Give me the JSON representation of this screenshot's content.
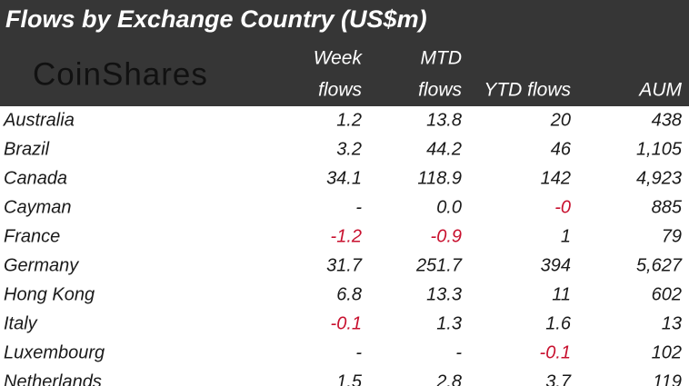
{
  "header": {
    "title": "Flows by Exchange Country (US$m)",
    "logo": "CoinShares"
  },
  "table": {
    "columns": [
      [
        "Week",
        "flows"
      ],
      [
        "MTD",
        "flows"
      ],
      [
        "YTD flows"
      ],
      [
        "AUM"
      ]
    ],
    "rows": [
      [
        "Australia",
        "1.2",
        "13.8",
        "20",
        "438"
      ],
      [
        "Brazil",
        "3.2",
        "44.2",
        "46",
        "1,105"
      ],
      [
        "Canada",
        "34.1",
        "118.9",
        "142",
        "4,923"
      ],
      [
        "Cayman",
        "-",
        "0.0",
        "-0",
        "885"
      ],
      [
        "France",
        "-1.2",
        "-0.9",
        "1",
        "79"
      ],
      [
        "Germany",
        "31.7",
        "251.7",
        "394",
        "5,627"
      ],
      [
        "Hong Kong",
        "6.8",
        "13.3",
        "11",
        "602"
      ],
      [
        "Italy",
        "-0.1",
        "1.3",
        "1.6",
        "13"
      ],
      [
        "Luxembourg",
        "-",
        "-",
        "-0.1",
        "102"
      ],
      [
        "Netherlands",
        "1.5",
        "2.8",
        "3.7",
        "119"
      ]
    ]
  }
}
